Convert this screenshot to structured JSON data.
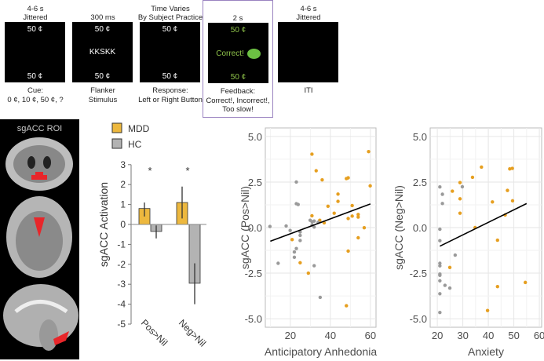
{
  "task_panels": [
    {
      "top": [
        "4-6 s",
        "Jittered"
      ],
      "box_top": "50 ¢",
      "box_middle": "",
      "box_bottom": "50 ¢",
      "bottom": [
        "Cue:",
        "0 ¢, 10 ¢, 50 ¢, ?"
      ],
      "highlight": false
    },
    {
      "top": [
        "300 ms"
      ],
      "box_top": "50 ¢",
      "box_middle": "KKSKK",
      "box_bottom": "50 ¢",
      "bottom": [
        "Flanker",
        "Stimulus"
      ],
      "highlight": false
    },
    {
      "top": [
        "Time Varies",
        "By Subject Practice"
      ],
      "box_top": "50 ¢",
      "box_middle": "",
      "box_bottom": "50 ¢",
      "bottom": [
        "Response:",
        "Left or Right Button"
      ],
      "highlight": false
    },
    {
      "top": [
        "2 s"
      ],
      "box_top": "50 ¢",
      "box_middle": "Correct!",
      "box_bottom": "50 ¢",
      "bottom": [
        "Feedback:",
        "Correct!, Incorrect!,",
        "Too slow!"
      ],
      "highlight": true
    },
    {
      "top": [
        "4-6 s",
        "Jittered"
      ],
      "box_top": "",
      "box_middle": "",
      "box_bottom": "",
      "bottom": [
        "ITI"
      ],
      "highlight": false
    }
  ],
  "brain_panel": {
    "title": "sgACC ROI"
  },
  "colors": {
    "mdd": "#EDB83E",
    "hc": "#B3B3B3",
    "mdd_point": "#E69F20",
    "hc_point": "#9A9A9A",
    "highlight_border": "#9A83C0"
  },
  "chart_data": [
    {
      "type": "bar",
      "ylabel": "sgACC Activation",
      "ylim": [
        -5,
        3
      ],
      "yticks": [
        "3",
        "2",
        "1",
        "0",
        "-1",
        "-2",
        "-3",
        "-4",
        "-5"
      ],
      "categories": [
        "Pos>Nil",
        "Neg>Nil"
      ],
      "legend": {
        "placement": "top-left",
        "entries": [
          "MDD",
          "HC"
        ]
      },
      "series": [
        {
          "name": "MDD",
          "values": [
            0.8,
            1.1
          ],
          "err_low": [
            0.4,
            0.3
          ],
          "err_high": [
            1.1,
            1.9
          ]
        },
        {
          "name": "HC",
          "values": [
            -0.35,
            -2.95
          ],
          "err_low": [
            -0.7,
            -4.0
          ],
          "err_high": [
            -0.05,
            -1.95
          ]
        }
      ],
      "annotations": [
        "*",
        "*"
      ]
    },
    {
      "type": "scatter",
      "xlabel": "Anticipatory Anhedonia",
      "ylabel": "sgACC (Pos>Nil)",
      "xlim": [
        7.5,
        62.8
      ],
      "ylim": [
        -5.47,
        5.47
      ],
      "xticks": [
        "20",
        "40",
        "60"
      ],
      "xtick_values": [
        20,
        40,
        60
      ],
      "yticks": [
        "5.0",
        "2.5",
        "0.0",
        "-2.5",
        "-5.0"
      ],
      "ytick_values": [
        5,
        2.5,
        0,
        -2.5,
        -5
      ],
      "grid": true,
      "fit_line": [
        [
          10,
          -0.75
        ],
        [
          60,
          1.3
        ]
      ],
      "series": [
        {
          "name": "MDD",
          "points": [
            [
              30.8,
              4.03
            ],
            [
              32.9,
              3.12
            ],
            [
              35.9,
              2.62
            ],
            [
              59.1,
              4.17
            ],
            [
              59.9,
              2.29
            ],
            [
              48,
              2.69
            ],
            [
              48.9,
              2.73
            ],
            [
              43.8,
              1.84
            ],
            [
              43.8,
              1.44
            ],
            [
              38.8,
              1.17
            ],
            [
              50.9,
              1.21
            ],
            [
              41.9,
              0.79
            ],
            [
              30.8,
              0.65
            ],
            [
              34.7,
              0.4
            ],
            [
              36.9,
              0.26
            ],
            [
              53.9,
              0.72
            ],
            [
              53.9,
              0.58
            ],
            [
              50.9,
              0.63
            ],
            [
              48.9,
              0.5
            ],
            [
              56.9,
              -0.01
            ],
            [
              53.9,
              -0.56
            ],
            [
              48.9,
              -1.29
            ],
            [
              20.9,
              -0.66
            ],
            [
              24.9,
              -1.93
            ],
            [
              29,
              -2.5
            ],
            [
              48,
              -4.29
            ]
          ]
        },
        {
          "name": "HC",
          "points": [
            [
              9.8,
              0.06
            ],
            [
              13.9,
              -1.96
            ],
            [
              17.9,
              0.09
            ],
            [
              19.9,
              -0.16
            ],
            [
              23,
              2.5
            ],
            [
              23,
              1.31
            ],
            [
              23.9,
              1.27
            ],
            [
              22,
              -1.34
            ],
            [
              22,
              -1.63
            ],
            [
              23,
              -1.15
            ],
            [
              24.9,
              -0.24
            ],
            [
              24.9,
              -0.43
            ],
            [
              24.9,
              -0.71
            ],
            [
              29.9,
              0.4
            ],
            [
              30.9,
              0.32
            ],
            [
              31.9,
              0.36
            ],
            [
              31.9,
              0.03
            ],
            [
              30.9,
              0.14
            ],
            [
              33.9,
              0.29
            ],
            [
              31.9,
              -2.09
            ],
            [
              34.9,
              -3.83
            ]
          ]
        }
      ]
    },
    {
      "type": "scatter",
      "xlabel": "Anxiety",
      "ylabel": "sgACC (Neg>Nil)",
      "xlim": [
        17.2,
        60.9
      ],
      "ylim": [
        -5.47,
        5.47
      ],
      "xticks": [
        "20",
        "30",
        "40",
        "50",
        "60"
      ],
      "xtick_values": [
        20,
        30,
        40,
        50,
        60
      ],
      "yticks": [
        "5.0",
        "2.5",
        "0.0",
        "-2.5",
        "-5.0"
      ],
      "ytick_values": [
        5,
        2.5,
        0,
        -2.5,
        -5
      ],
      "grid": true,
      "fit_line": [
        [
          21,
          -1.02
        ],
        [
          55,
          1.32
        ]
      ],
      "series": [
        {
          "name": "MDD",
          "points": [
            [
              37.3,
              3.32
            ],
            [
              48.4,
              3.22
            ],
            [
              49.4,
              3.25
            ],
            [
              33.8,
              2.76
            ],
            [
              28.9,
              2.47
            ],
            [
              25.9,
              2.0
            ],
            [
              47.5,
              2.04
            ],
            [
              28.9,
              1.58
            ],
            [
              41.6,
              1.41
            ],
            [
              49.5,
              1.47
            ],
            [
              28.9,
              0.79
            ],
            [
              46.6,
              0.69
            ],
            [
              34.8,
              0.0
            ],
            [
              43.6,
              -0.69
            ],
            [
              24.9,
              -2.19
            ],
            [
              43.6,
              -3.24
            ],
            [
              54.5,
              -3.01
            ],
            [
              39.7,
              -4.55
            ]
          ]
        },
        {
          "name": "HC",
          "points": [
            [
              21,
              2.23
            ],
            [
              22,
              1.83
            ],
            [
              22,
              1.32
            ],
            [
              29.8,
              2.24
            ],
            [
              21,
              -0.09
            ],
            [
              21,
              -0.72
            ],
            [
              27,
              -1.51
            ],
            [
              21,
              -1.96
            ],
            [
              21,
              -2.1
            ],
            [
              21,
              -2.55
            ],
            [
              21,
              -2.62
            ],
            [
              21,
              -2.92
            ],
            [
              23,
              -3.17
            ],
            [
              24.9,
              -3.32
            ],
            [
              21,
              -3.63
            ],
            [
              21,
              -4.66
            ]
          ]
        }
      ]
    }
  ]
}
